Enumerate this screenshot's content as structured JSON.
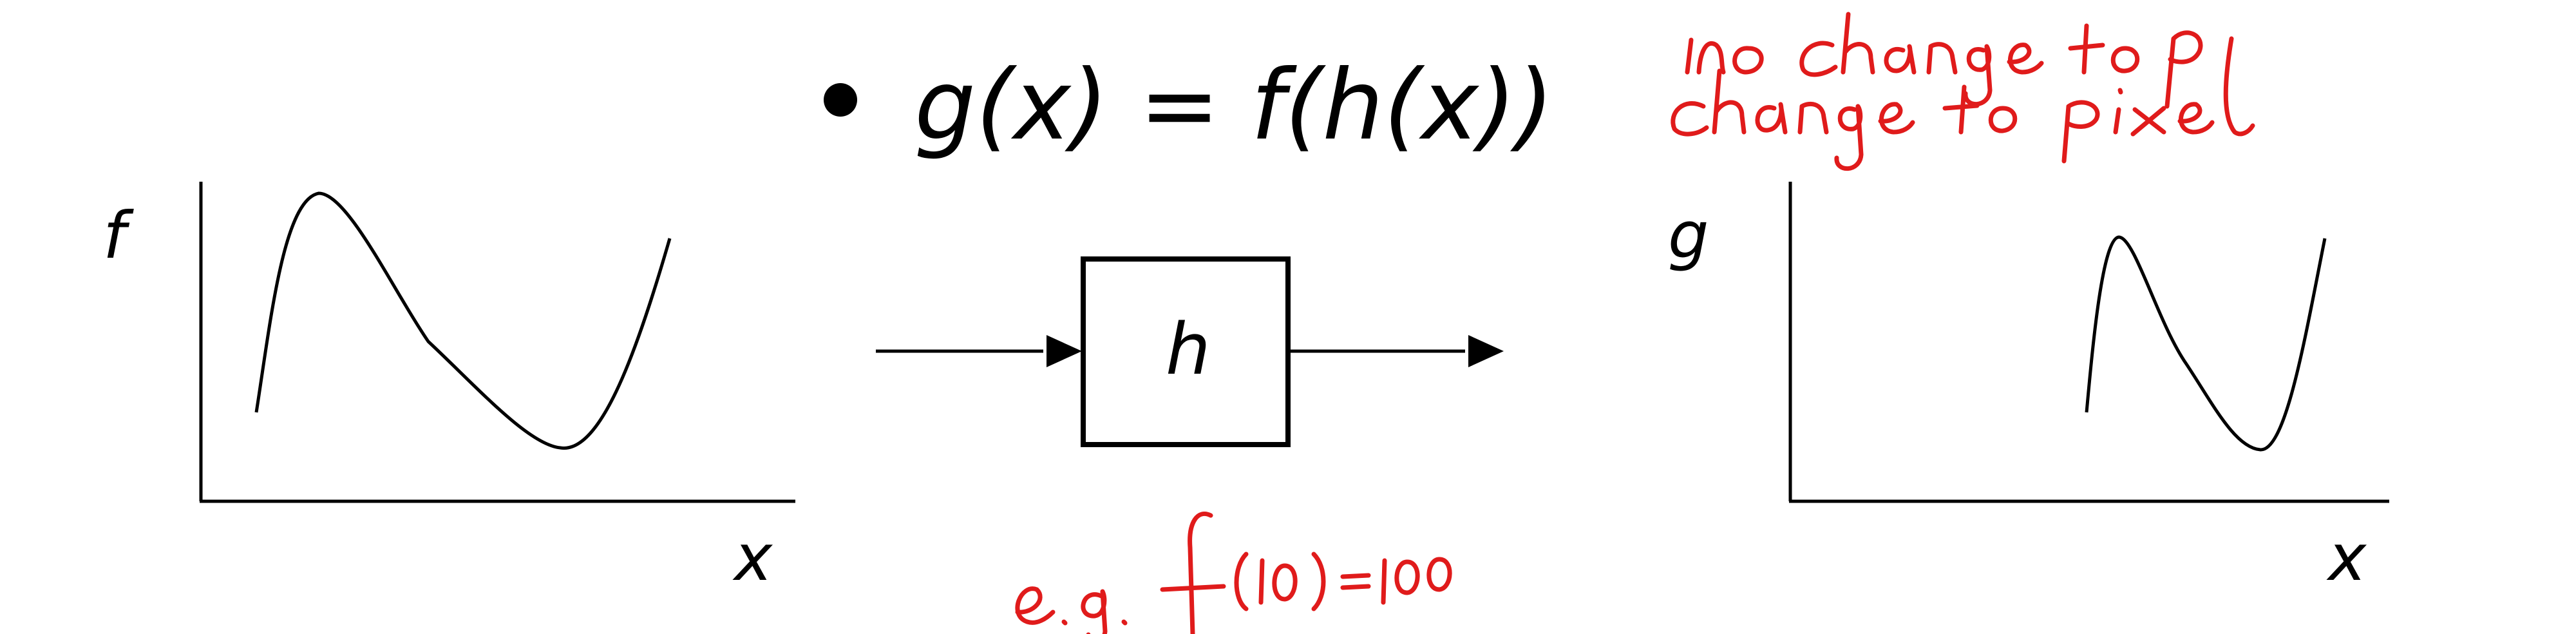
{
  "formula": {
    "bullet": "•",
    "text": "g(x) = f(h(x))"
  },
  "left_plot": {
    "ylabel": "f",
    "xlabel": "x"
  },
  "right_plot": {
    "ylabel": "g",
    "xlabel": "x"
  },
  "transform_box": {
    "label": "h"
  },
  "handwritten_notes": {
    "line1": "no change to f",
    "line2": "change to pixel",
    "example": "e.g. f(10)=100",
    "ink_color": "#e01b1b"
  }
}
